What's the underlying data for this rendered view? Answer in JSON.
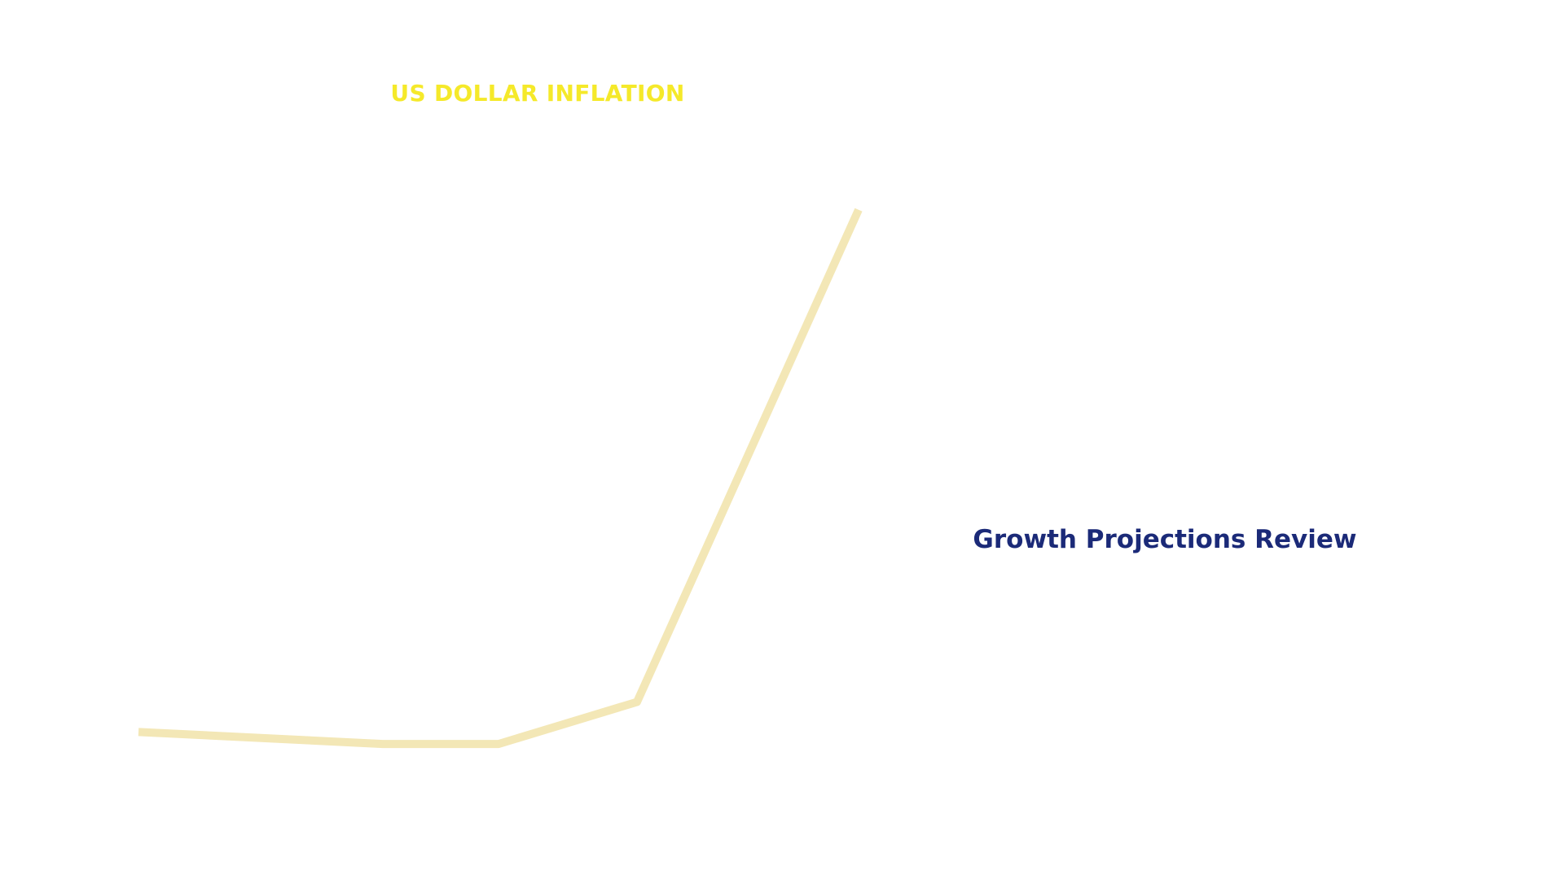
{
  "slide": {
    "review_label": "Growth Projections Review",
    "review_label_color": "#1B2A78"
  },
  "chart_data": {
    "type": "line",
    "title": "US DOLLAR INFLATION",
    "title_color": "#F5E92A",
    "line_color": "#F3E7B6",
    "x": [
      0,
      1,
      2,
      3,
      4
    ],
    "categories": [
      "",
      "",
      "",
      "",
      ""
    ],
    "series": [
      {
        "values": [
          1.5,
          1.3,
          1.3,
          2.0,
          10.2
        ]
      }
    ],
    "xlabel": "",
    "ylabel": "",
    "ylim": [
      0,
      12
    ],
    "grid": false,
    "legend": "none"
  }
}
